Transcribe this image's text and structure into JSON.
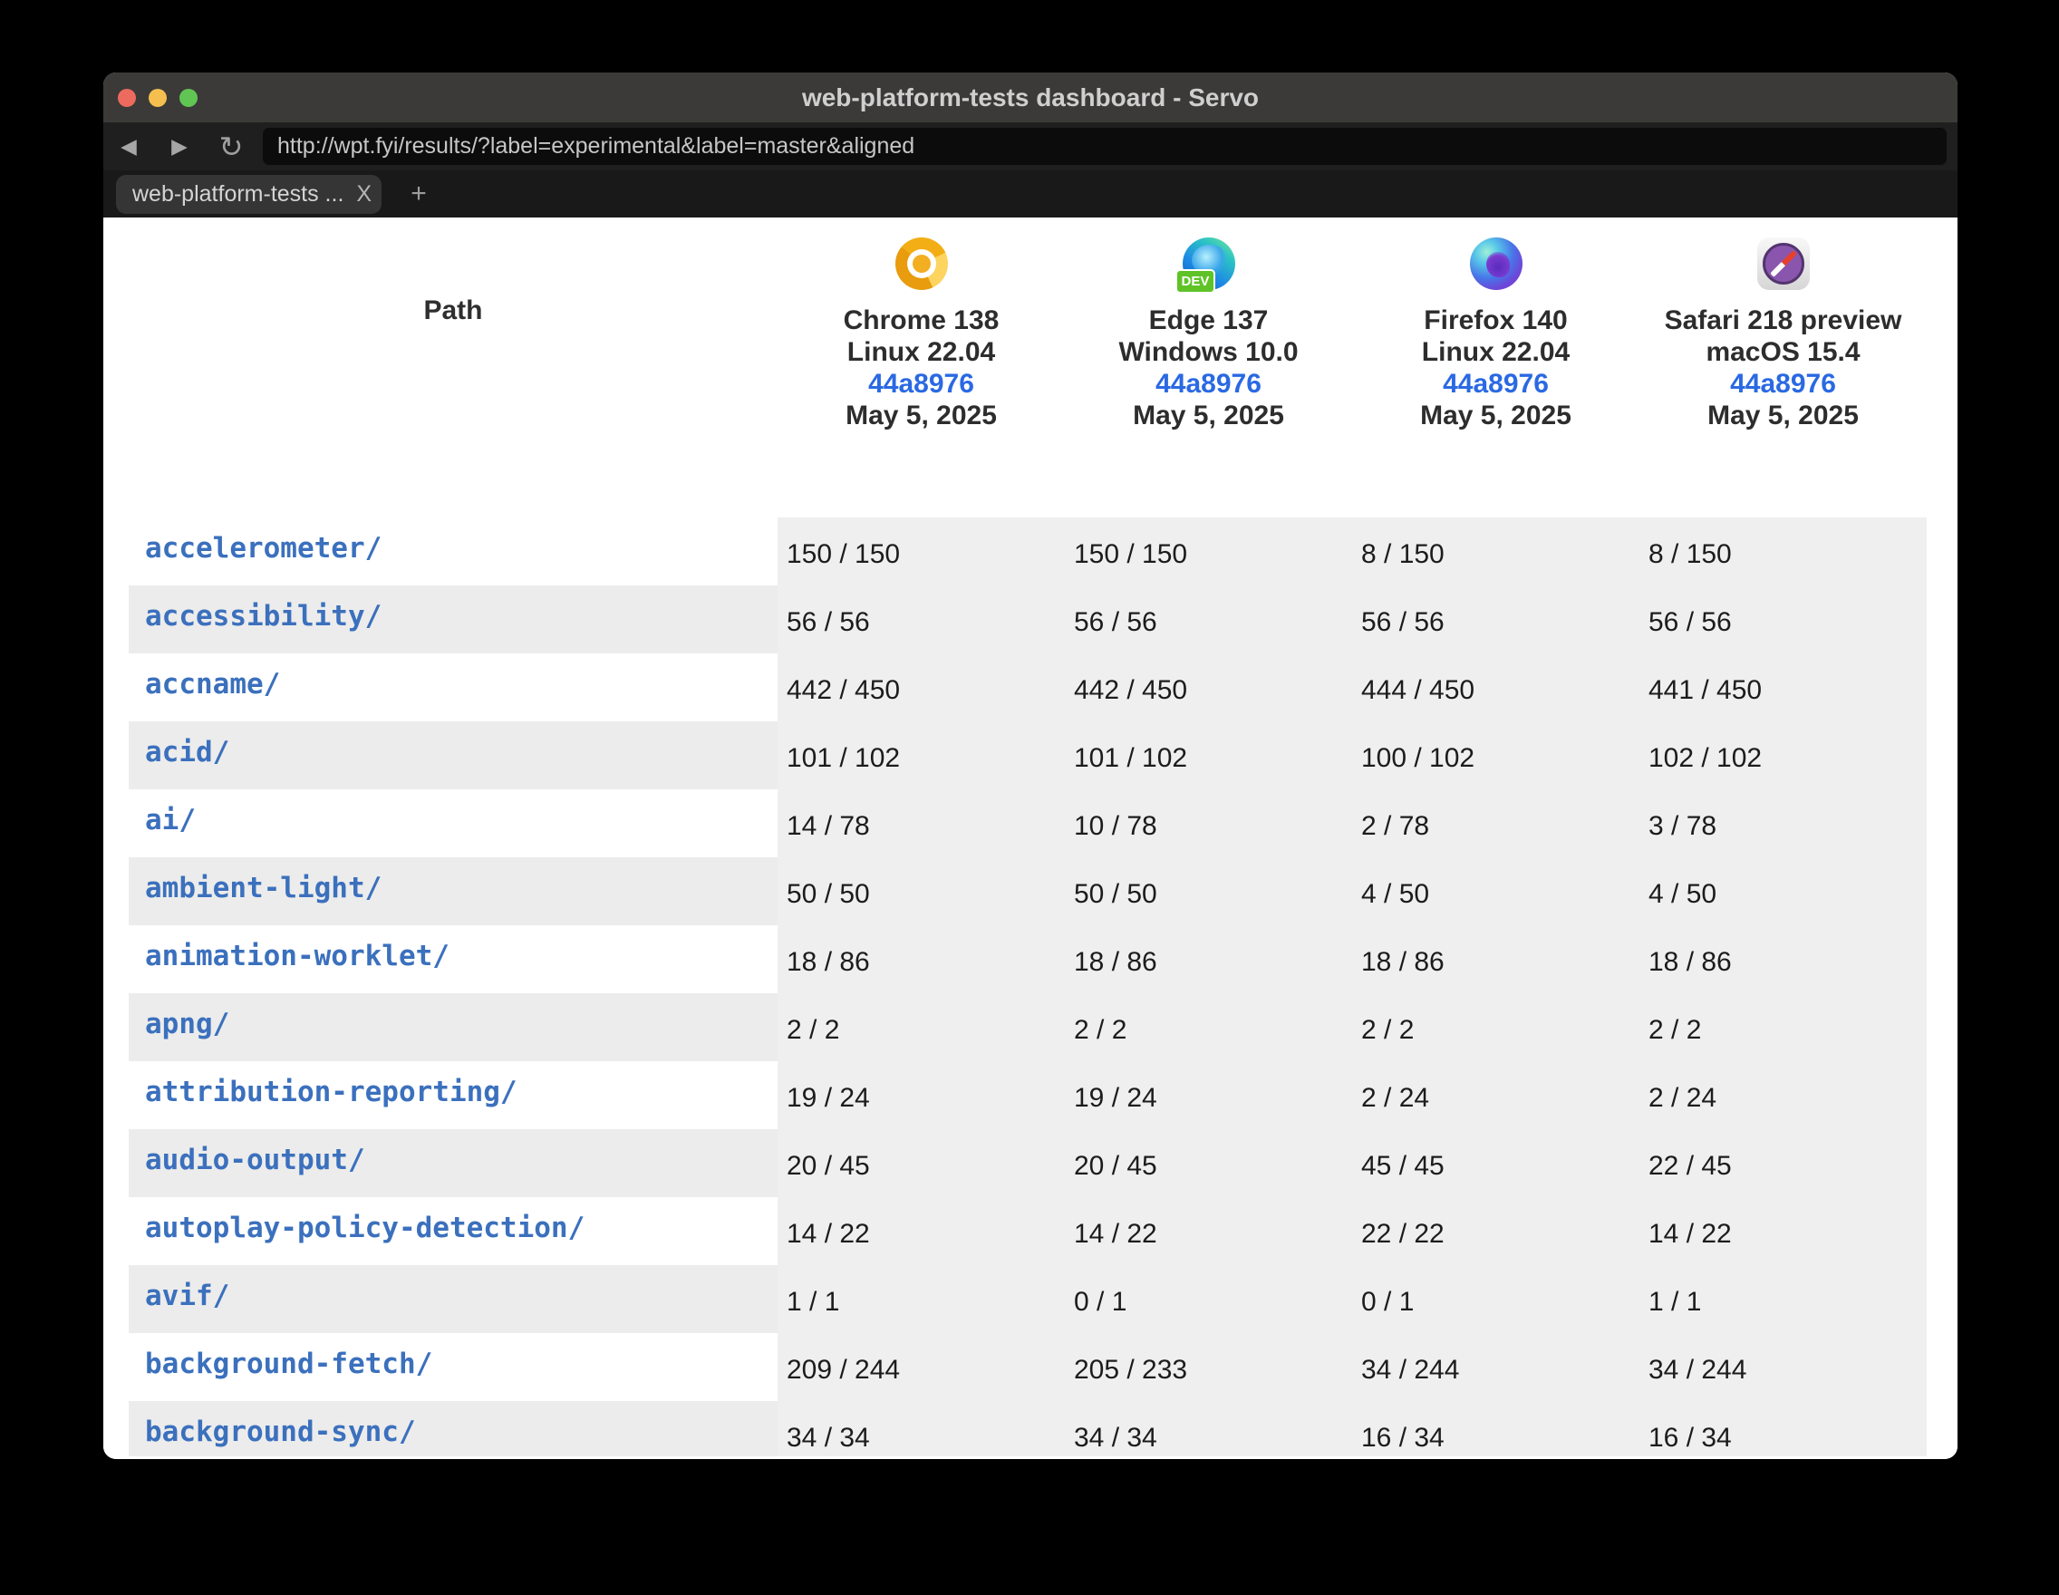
{
  "window": {
    "title": "web-platform-tests dashboard - Servo"
  },
  "nav": {
    "back_icon": "◀",
    "forward_icon": "▶",
    "reload_icon": "↻",
    "url": "http://wpt.fyi/results/?label=experimental&label=master&aligned"
  },
  "tabs": {
    "active_label": "web-platform-tests ...",
    "close_glyph": "X",
    "new_tab_glyph": "+"
  },
  "table": {
    "path_header": "Path",
    "browsers": [
      {
        "icon": "chrome",
        "name": "Chrome 138",
        "os": "Linux 22.04",
        "sha": "44a8976",
        "date": "May 5, 2025"
      },
      {
        "icon": "edge",
        "name": "Edge 137",
        "os": "Windows 10.0",
        "sha": "44a8976",
        "date": "May 5, 2025",
        "badge": "DEV"
      },
      {
        "icon": "firefox",
        "name": "Firefox 140",
        "os": "Linux 22.04",
        "sha": "44a8976",
        "date": "May 5, 2025"
      },
      {
        "icon": "safari",
        "name": "Safari 218 preview",
        "os": "macOS 15.4",
        "sha": "44a8976",
        "date": "May 5, 2025"
      }
    ],
    "rows": [
      {
        "path": "accelerometer/",
        "values": [
          "150 / 150",
          "150 / 150",
          "8 / 150",
          "8 / 150"
        ]
      },
      {
        "path": "accessibility/",
        "values": [
          "56 / 56",
          "56 / 56",
          "56 / 56",
          "56 / 56"
        ]
      },
      {
        "path": "accname/",
        "values": [
          "442 / 450",
          "442 / 450",
          "444 / 450",
          "441 / 450"
        ]
      },
      {
        "path": "acid/",
        "values": [
          "101 / 102",
          "101 / 102",
          "100 / 102",
          "102 / 102"
        ]
      },
      {
        "path": "ai/",
        "values": [
          "14 / 78",
          "10 / 78",
          "2 / 78",
          "3 / 78"
        ]
      },
      {
        "path": "ambient-light/",
        "values": [
          "50 / 50",
          "50 / 50",
          "4 / 50",
          "4 / 50"
        ]
      },
      {
        "path": "animation-worklet/",
        "values": [
          "18 / 86",
          "18 / 86",
          "18 / 86",
          "18 / 86"
        ]
      },
      {
        "path": "apng/",
        "values": [
          "2 / 2",
          "2 / 2",
          "2 / 2",
          "2 / 2"
        ]
      },
      {
        "path": "attribution-reporting/",
        "values": [
          "19 / 24",
          "19 / 24",
          "2 / 24",
          "2 / 24"
        ]
      },
      {
        "path": "audio-output/",
        "values": [
          "20 / 45",
          "20 / 45",
          "45 / 45",
          "22 / 45"
        ]
      },
      {
        "path": "autoplay-policy-detection/",
        "values": [
          "14 / 22",
          "14 / 22",
          "22 / 22",
          "14 / 22"
        ]
      },
      {
        "path": "avif/",
        "values": [
          "1 / 1",
          "0 / 1",
          "0 / 1",
          "1 / 1"
        ]
      },
      {
        "path": "background-fetch/",
        "values": [
          "209 / 244",
          "205 / 233",
          "34 / 244",
          "34 / 244"
        ]
      },
      {
        "path": "background-sync/",
        "values": [
          "34 / 34",
          "34 / 34",
          "16 / 34",
          "16 / 34"
        ]
      }
    ]
  },
  "colors": {
    "titlebar": "#3b3a39",
    "navbar": "#1f1f1f",
    "tabbar": "#191919",
    "tab_active": "#353535",
    "urlfield": "#0c0c0c",
    "traffic_red": "#ed6a5e",
    "traffic_yellow": "#f4bf4f",
    "traffic_green": "#61c554",
    "path_link": "#3b70bd",
    "sha_link": "#2a69e3",
    "badge_green": "#5fc327",
    "row_stripe": "#ececec",
    "values_bg": "#efefef"
  }
}
